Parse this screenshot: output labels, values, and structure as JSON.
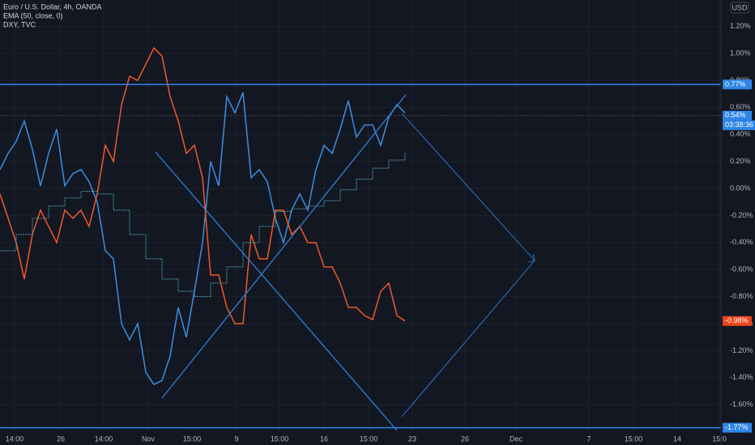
{
  "chart_data": {
    "type": "line",
    "header": [
      "Euro / U.S. Dollar, 4h, OANDA",
      "EMA (50, close, 0)",
      "DXY, TVC"
    ],
    "currency": "USD",
    "xlim": [
      0,
      178
    ],
    "ylim": [
      -1.79,
      1.395
    ],
    "grid": true,
    "xticks": [
      {
        "value": 3.6,
        "label": "14:00"
      },
      {
        "value": 15,
        "label": "26"
      },
      {
        "value": 25.6,
        "label": "14:00"
      },
      {
        "value": 36.6,
        "label": "Nov"
      },
      {
        "value": 47.4,
        "label": "15:00"
      },
      {
        "value": 58.4,
        "label": "9"
      },
      {
        "value": 69,
        "label": "15:00"
      },
      {
        "value": 80,
        "label": "16"
      },
      {
        "value": 91,
        "label": "15:00"
      },
      {
        "value": 101.8,
        "label": "23"
      },
      {
        "value": 114.8,
        "label": "26"
      },
      {
        "value": 127.4,
        "label": "Dec"
      },
      {
        "value": 145.4,
        "label": "7"
      },
      {
        "value": 156.4,
        "label": "15:00"
      },
      {
        "value": 167.2,
        "label": "14"
      },
      {
        "value": 177.6,
        "label": "15:0"
      }
    ],
    "yticks": [
      {
        "value": 1.2,
        "label": "1.20%"
      },
      {
        "value": 1.0,
        "label": "1.00%"
      },
      {
        "value": 0.8,
        "label": "0.80%"
      },
      {
        "value": 0.6,
        "label": "0.60%"
      },
      {
        "value": 0.4,
        "label": "0.40%"
      },
      {
        "value": 0.2,
        "label": "0.20%"
      },
      {
        "value": 0,
        "label": "0.00%"
      },
      {
        "value": -0.2,
        "label": "-0.20%"
      },
      {
        "value": -0.4,
        "label": "-0.40%"
      },
      {
        "value": -0.6,
        "label": "-0.60%"
      },
      {
        "value": -0.8,
        "label": "-0.80%"
      },
      {
        "value": -1.0,
        "label": "-1.00%"
      },
      {
        "value": -1.2,
        "label": "-1.20%"
      },
      {
        "value": -1.4,
        "label": "-1.40%"
      },
      {
        "value": -1.6,
        "label": "-1.60%"
      }
    ],
    "x": [
      0,
      2,
      4,
      6,
      8,
      10,
      12,
      14,
      16,
      18,
      20,
      22,
      24,
      26,
      28,
      30,
      32,
      34,
      36,
      38,
      40,
      42,
      44,
      46,
      48,
      50,
      52,
      54,
      56,
      58,
      60,
      62,
      64,
      66,
      68,
      70,
      72,
      74,
      76,
      78,
      80,
      82,
      84,
      86,
      88,
      90,
      92,
      94,
      96,
      98,
      100
    ],
    "series": [
      {
        "name": "Euro / U.S. Dollar, 4h, OANDA",
        "color": "#3a8fe0",
        "values": [
          0.14,
          0.26,
          0.35,
          0.5,
          0.29,
          0.02,
          0.26,
          0.44,
          0.02,
          0.11,
          0.14,
          0.05,
          -0.1,
          -0.46,
          -0.52,
          -1.0,
          -1.12,
          -1.0,
          -1.36,
          -1.45,
          -1.42,
          -1.24,
          -0.88,
          -1.1,
          -0.76,
          -0.4,
          0.2,
          0.02,
          0.68,
          0.56,
          0.71,
          0.08,
          0.14,
          0.05,
          -0.22,
          -0.4,
          -0.16,
          -0.04,
          -0.16,
          0.14,
          0.32,
          0.26,
          0.44,
          0.65,
          0.38,
          0.47,
          0.47,
          0.32,
          0.53,
          0.62,
          0.56
        ]
      },
      {
        "name": "DXY, TVC",
        "color": "#f0582a",
        "values": [
          -0.04,
          -0.22,
          -0.4,
          -0.67,
          -0.34,
          -0.16,
          -0.28,
          -0.4,
          -0.16,
          -0.22,
          -0.16,
          -0.28,
          -0.04,
          0.32,
          0.2,
          0.62,
          0.83,
          0.8,
          0.92,
          1.04,
          0.98,
          0.68,
          0.5,
          0.26,
          0.32,
          0.08,
          -0.64,
          -0.64,
          -0.88,
          -1.0,
          -1.0,
          -0.34,
          -0.52,
          -0.52,
          -0.16,
          -0.16,
          -0.34,
          -0.28,
          -0.4,
          -0.4,
          -0.58,
          -0.58,
          -0.7,
          -0.88,
          -0.88,
          -0.94,
          -0.97,
          -0.76,
          -0.7,
          -0.94,
          -0.98
        ]
      },
      {
        "name": "EMA (50, close, 0)",
        "color": "#4a9aa8",
        "dash": true,
        "x": [
          0,
          4,
          8,
          12,
          16,
          20,
          24,
          28,
          32,
          36,
          40,
          44,
          48,
          52,
          56,
          60,
          64,
          68,
          72,
          76,
          80,
          84,
          88,
          92,
          96,
          100
        ],
        "values": [
          -0.46,
          -0.34,
          -0.22,
          -0.13,
          -0.07,
          -0.02,
          -0.04,
          -0.16,
          -0.34,
          -0.52,
          -0.67,
          -0.76,
          -0.8,
          -0.7,
          -0.58,
          -0.4,
          -0.28,
          -0.17,
          -0.15,
          -0.13,
          -0.09,
          -0.01,
          0.07,
          0.15,
          0.21,
          0.27
        ]
      }
    ],
    "hlines": [
      0.77,
      -1.77
    ],
    "price_labels": [
      {
        "value": 0.77,
        "label": "0.77%",
        "color": "#2e86e8"
      },
      {
        "value": 0.54,
        "label": "0.54%",
        "color": "#2e86e8",
        "dotted": true
      },
      {
        "value": -0.98,
        "label": "-0.98%",
        "color": "#f0441a"
      },
      {
        "value": -1.77,
        "label": "-1.77%",
        "color": "#2e86e8"
      }
    ],
    "countdown": "03:38:36"
  }
}
